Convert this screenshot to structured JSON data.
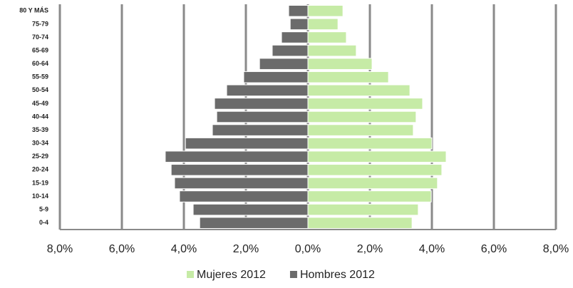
{
  "chart_data": {
    "type": "bar",
    "orientation": "horizontal",
    "categories": [
      "80 Y MÁS",
      "75-79",
      "70-74",
      "65-69",
      "60-64",
      "55-59",
      "50-54",
      "45-49",
      "40-44",
      "35-39",
      "30-34",
      "25-29",
      "20-24",
      "15-19",
      "10-14",
      "5-9",
      "0-4"
    ],
    "series": [
      {
        "name": "Mujeres 2012",
        "color": "#c6eba6",
        "values": [
          1.13,
          0.97,
          1.24,
          1.56,
          2.07,
          2.6,
          3.29,
          3.7,
          3.49,
          3.4,
          4.0,
          4.46,
          4.32,
          4.18,
          3.98,
          3.56,
          3.36
        ]
      },
      {
        "name": "Hombres 2012",
        "color": "#6b6b6b",
        "values": [
          -0.62,
          -0.57,
          -0.85,
          -1.15,
          -1.56,
          -2.07,
          -2.62,
          -3.01,
          -2.94,
          -3.08,
          -3.95,
          -4.6,
          -4.41,
          -4.3,
          -4.14,
          -3.7,
          -3.49
        ]
      }
    ],
    "xlim": [
      -8,
      8
    ],
    "xticks": [
      {
        "value": -8,
        "label": "8,0%"
      },
      {
        "value": -6,
        "label": "6,0%"
      },
      {
        "value": -4,
        "label": "4,0%"
      },
      {
        "value": -2,
        "label": "2,0%"
      },
      {
        "value": 0,
        "label": "0,0%"
      },
      {
        "value": 2,
        "label": "2,0%"
      },
      {
        "value": 4,
        "label": "4,0%"
      },
      {
        "value": 6,
        "label": "6,0%"
      },
      {
        "value": 8,
        "label": "8,0%"
      }
    ],
    "grid": true,
    "legend": "bottom"
  }
}
